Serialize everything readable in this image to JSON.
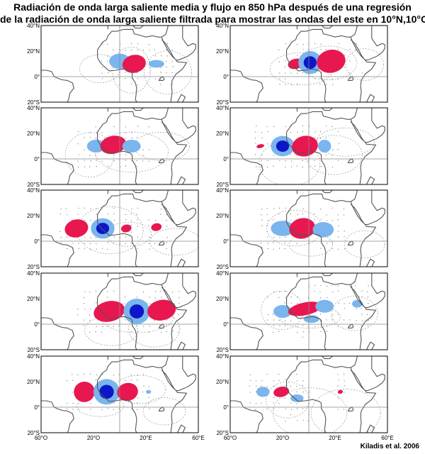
{
  "title": {
    "line1": "Radiación de onda larga saliente media y flujo en 850 hPa después de una regresión",
    "line2": "de la radiación de onda larga saliente filtrada para mostrar las ondas del este en 10°N,10°O"
  },
  "credit": "Kiladis et al. 2006",
  "lat_labels": [
    "40°N",
    "20°N",
    "0°",
    "20°S"
  ],
  "lon_labels": [
    "60°O",
    "20°O",
    "20°E",
    "60°E"
  ],
  "colors": {
    "positive": "#e8174f",
    "negative_light": "#7ab5ee",
    "negative_dark": "#0b17c8",
    "coast": "#555555",
    "contour": "#9a9a9a",
    "frame": "#000000"
  },
  "panels": [
    {
      "col": 0,
      "row": 0,
      "anomalies": [
        {
          "sign": "neg",
          "lon": 0,
          "lat": 12,
          "rx": 8,
          "ry": 6
        },
        {
          "sign": "pos",
          "lon": 11,
          "lat": 10,
          "rx": 9,
          "ry": 7
        },
        {
          "sign": "neg",
          "lon": 28,
          "lat": 10,
          "rx": 6,
          "ry": 3
        }
      ]
    },
    {
      "col": 1,
      "row": 0,
      "anomalies": [
        {
          "sign": "pos",
          "lon": -10,
          "lat": 10,
          "rx": 6,
          "ry": 4
        },
        {
          "sign": "neg",
          "lon": 1,
          "lat": 11,
          "rx": 9,
          "ry": 9,
          "core": true
        },
        {
          "sign": "pos",
          "lon": 17,
          "lat": 12,
          "rx": 11,
          "ry": 9
        }
      ]
    },
    {
      "col": 0,
      "row": 1,
      "anomalies": [
        {
          "sign": "neg",
          "lon": -18,
          "lat": 10,
          "rx": 7,
          "ry": 5
        },
        {
          "sign": "pos",
          "lon": -5,
          "lat": 11,
          "rx": 10,
          "ry": 7
        },
        {
          "sign": "neg",
          "lon": 9,
          "lat": 10,
          "rx": 7,
          "ry": 5
        }
      ]
    },
    {
      "col": 1,
      "row": 1,
      "anomalies": [
        {
          "sign": "pos",
          "lon": -37,
          "lat": 10,
          "rx": 3,
          "ry": 1.5
        },
        {
          "sign": "neg",
          "lon": -20,
          "lat": 10,
          "rx": 9,
          "ry": 8,
          "core": true
        },
        {
          "sign": "pos",
          "lon": -3,
          "lat": 10,
          "rx": 10,
          "ry": 8
        },
        {
          "sign": "neg",
          "lon": 12,
          "lat": 10,
          "rx": 5,
          "ry": 5
        }
      ]
    },
    {
      "col": 0,
      "row": 2,
      "anomalies": [
        {
          "sign": "pos",
          "lon": -33,
          "lat": 10,
          "rx": 9,
          "ry": 7
        },
        {
          "sign": "neg",
          "lon": -13,
          "lat": 10,
          "rx": 9,
          "ry": 8,
          "core": true
        },
        {
          "sign": "pos",
          "lon": 5,
          "lat": 10,
          "rx": 4,
          "ry": 3
        },
        {
          "sign": "pos",
          "lon": 28,
          "lat": 11,
          "rx": 4,
          "ry": 3
        }
      ]
    },
    {
      "col": 1,
      "row": 2,
      "anomalies": [
        {
          "sign": "neg",
          "lon": -20,
          "lat": 10,
          "rx": 9,
          "ry": 6
        },
        {
          "sign": "pos",
          "lon": -5,
          "lat": 10,
          "rx": 10,
          "ry": 8
        },
        {
          "sign": "neg",
          "lon": 11,
          "lat": 9,
          "rx": 8,
          "ry": 6
        }
      ]
    },
    {
      "col": 0,
      "row": 3,
      "anomalies": [
        {
          "sign": "pos",
          "lon": -8,
          "lat": 10,
          "rx": 12,
          "ry": 8
        },
        {
          "sign": "neg",
          "lon": 13,
          "lat": 10,
          "rx": 10,
          "ry": 10,
          "core": true
        },
        {
          "sign": "pos",
          "lon": 32,
          "lat": 11,
          "rx": 11,
          "ry": 8
        }
      ]
    },
    {
      "col": 1,
      "row": 3,
      "anomalies": [
        {
          "sign": "neg",
          "lon": -20,
          "lat": 10,
          "rx": 7,
          "ry": 5
        },
        {
          "sign": "pos",
          "lon": -3,
          "lat": 12,
          "rx": 13,
          "ry": 5
        },
        {
          "sign": "neg",
          "lon": 12,
          "lat": 14,
          "rx": 7,
          "ry": 5
        },
        {
          "sign": "neg",
          "lon": 37,
          "lat": 16,
          "rx": 4,
          "ry": 3
        },
        {
          "sign": "neg",
          "lon": 2,
          "lat": 4,
          "rx": 6,
          "ry": 3
        }
      ]
    },
    {
      "col": 0,
      "row": 4,
      "anomalies": [
        {
          "sign": "pos",
          "lon": -27,
          "lat": 12,
          "rx": 8,
          "ry": 8
        },
        {
          "sign": "neg",
          "lon": -10,
          "lat": 12,
          "rx": 10,
          "ry": 10,
          "core": true
        },
        {
          "sign": "pos",
          "lon": 6,
          "lat": 12,
          "rx": 8,
          "ry": 7
        },
        {
          "sign": "neg",
          "lon": 22,
          "lat": 12,
          "rx": 2,
          "ry": 1.5
        }
      ]
    },
    {
      "col": 1,
      "row": 4,
      "anomalies": [
        {
          "sign": "neg",
          "lon": -35,
          "lat": 12,
          "rx": 5,
          "ry": 4
        },
        {
          "sign": "pos",
          "lon": -21,
          "lat": 12,
          "rx": 6,
          "ry": 4
        },
        {
          "sign": "neg",
          "lon": -9,
          "lat": 7,
          "rx": 5,
          "ry": 3
        },
        {
          "sign": "pos",
          "lon": 24,
          "lat": 12,
          "rx": 2,
          "ry": 1.5
        }
      ]
    }
  ]
}
